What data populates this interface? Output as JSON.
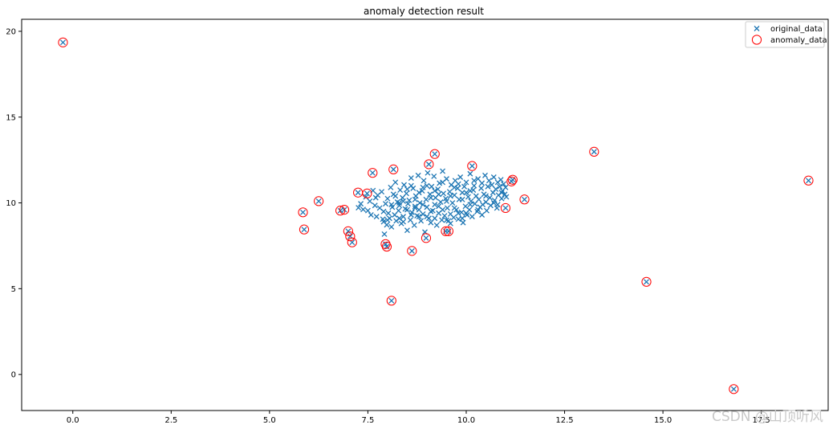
{
  "watermark": "CSDN @山顶听风",
  "colors": {
    "original": "#1f77b4",
    "anomaly": "#ff0000",
    "axis": "#000000",
    "legend_border": "#cccccc",
    "watermark": "#c9c9c9"
  },
  "chart_data": {
    "type": "scatter",
    "title": "anomaly detection result",
    "xlabel": "",
    "ylabel": "",
    "xlim": [
      -1.3,
      19.2
    ],
    "ylim": [
      -2.1,
      20.7
    ],
    "xticks": [
      0.0,
      2.5,
      5.0,
      7.5,
      10.0,
      12.5,
      15.0,
      17.5
    ],
    "xtick_labels": [
      "0.0",
      "2.5",
      "5.0",
      "7.5",
      "10.0",
      "12.5",
      "15.0",
      "17.5"
    ],
    "yticks": [
      0,
      5,
      10,
      15,
      20
    ],
    "ytick_labels": [
      "0",
      "5",
      "10",
      "15",
      "20"
    ],
    "grid": false,
    "legend_position": "top-right",
    "legend": [
      "original_data",
      "anomaly_data"
    ],
    "series": [
      {
        "name": "original_data",
        "marker": "x",
        "color": "#1f77b4",
        "points": [
          [
            7.26,
            9.72
          ],
          [
            7.32,
            9.95
          ],
          [
            7.38,
            9.62
          ],
          [
            7.45,
            10.35
          ],
          [
            7.5,
            9.55
          ],
          [
            7.55,
            10.1
          ],
          [
            7.58,
            9.3
          ],
          [
            7.63,
            10.72
          ],
          [
            7.68,
            9.85
          ],
          [
            7.72,
            9.2
          ],
          [
            7.75,
            10.45
          ],
          [
            7.8,
            9.7
          ],
          [
            7.85,
            10.65
          ],
          [
            7.88,
            9.05
          ],
          [
            7.9,
            8.9
          ],
          [
            7.92,
            8.18
          ],
          [
            7.95,
            9.95
          ],
          [
            7.98,
            8.72
          ],
          [
            8.0,
            10.25
          ],
          [
            8.02,
            9.4
          ],
          [
            8.05,
            9.1
          ],
          [
            8.08,
            10.9
          ],
          [
            8.1,
            8.6
          ],
          [
            8.12,
            9.75
          ],
          [
            8.15,
            10.5
          ],
          [
            8.18,
            9.3
          ],
          [
            8.2,
            11.2
          ],
          [
            8.22,
            8.95
          ],
          [
            8.25,
            10.05
          ],
          [
            8.28,
            9.55
          ],
          [
            8.3,
            9.85
          ],
          [
            8.32,
            10.75
          ],
          [
            8.35,
            8.8
          ],
          [
            8.38,
            10.3
          ],
          [
            8.4,
            9.2
          ],
          [
            8.42,
            11.05
          ],
          [
            8.45,
            9.65
          ],
          [
            8.48,
            10.55
          ],
          [
            8.5,
            8.4
          ],
          [
            8.52,
            9.95
          ],
          [
            8.55,
            10.15
          ],
          [
            8.58,
            9.0
          ],
          [
            8.6,
            11.45
          ],
          [
            8.62,
            9.45
          ],
          [
            8.65,
            10.85
          ],
          [
            8.68,
            8.7
          ],
          [
            8.7,
            9.8
          ],
          [
            8.72,
            10.4
          ],
          [
            8.75,
            9.25
          ],
          [
            8.78,
            11.6
          ],
          [
            8.8,
            9.6
          ],
          [
            8.82,
            10.0
          ],
          [
            8.85,
            8.95
          ],
          [
            8.88,
            10.7
          ],
          [
            8.9,
            9.35
          ],
          [
            8.92,
            11.3
          ],
          [
            8.95,
            8.3
          ],
          [
            8.98,
            10.2
          ],
          [
            9.0,
            9.75
          ],
          [
            9.02,
            11.75
          ],
          [
            9.05,
            9.1
          ],
          [
            9.08,
            10.5
          ],
          [
            9.1,
            8.85
          ],
          [
            9.12,
            10.95
          ],
          [
            9.15,
            9.55
          ],
          [
            9.18,
            11.55
          ],
          [
            9.2,
            9.9
          ],
          [
            9.22,
            10.3
          ],
          [
            9.25,
            8.7
          ],
          [
            9.28,
            10.8
          ],
          [
            9.3,
            9.4
          ],
          [
            9.32,
            11.15
          ],
          [
            9.35,
            10.05
          ],
          [
            9.38,
            9.0
          ],
          [
            9.4,
            11.85
          ],
          [
            9.42,
            10.55
          ],
          [
            9.45,
            9.25
          ],
          [
            9.48,
            10.25
          ],
          [
            9.5,
            11.4
          ],
          [
            9.52,
            9.7
          ],
          [
            9.55,
            8.95
          ],
          [
            9.58,
            10.65
          ],
          [
            9.6,
            9.35
          ],
          [
            9.62,
            11.05
          ],
          [
            9.65,
            10.0
          ],
          [
            9.68,
            9.15
          ],
          [
            9.7,
            10.45
          ],
          [
            9.72,
            11.3
          ],
          [
            9.75,
            9.6
          ],
          [
            9.78,
            10.85
          ],
          [
            9.8,
            9.05
          ],
          [
            9.82,
            10.2
          ],
          [
            9.85,
            11.5
          ],
          [
            9.88,
            9.45
          ],
          [
            9.9,
            10.6
          ],
          [
            9.92,
            8.85
          ],
          [
            9.95,
            10.95
          ],
          [
            9.98,
            9.8
          ],
          [
            10.0,
            11.2
          ],
          [
            10.02,
            9.3
          ],
          [
            10.05,
            10.35
          ],
          [
            10.08,
            9.6
          ],
          [
            10.1,
            11.7
          ],
          [
            10.12,
            10.1
          ],
          [
            10.15,
            9.2
          ],
          [
            10.18,
            10.75
          ],
          [
            10.2,
            11.0
          ],
          [
            10.22,
            9.95
          ],
          [
            10.25,
            10.4
          ],
          [
            10.28,
            9.5
          ],
          [
            10.3,
            11.4
          ],
          [
            10.32,
            10.2
          ],
          [
            10.35,
            9.75
          ],
          [
            10.38,
            10.85
          ],
          [
            10.4,
            11.15
          ],
          [
            10.42,
            9.9
          ],
          [
            10.45,
            10.5
          ],
          [
            10.48,
            11.6
          ],
          [
            10.5,
            10.05
          ],
          [
            10.52,
            9.55
          ],
          [
            10.55,
            10.95
          ],
          [
            10.58,
            11.3
          ],
          [
            10.6,
            10.3
          ],
          [
            10.62,
            9.85
          ],
          [
            10.65,
            11.05
          ],
          [
            10.68,
            10.6
          ],
          [
            10.7,
            11.5
          ],
          [
            10.72,
            10.15
          ],
          [
            10.75,
            10.8
          ],
          [
            10.78,
            9.7
          ],
          [
            10.8,
            11.2
          ],
          [
            10.82,
            10.45
          ],
          [
            10.85,
            10.95
          ],
          [
            10.88,
            11.35
          ],
          [
            10.9,
            10.25
          ],
          [
            10.92,
            10.7
          ],
          [
            10.95,
            11.1
          ],
          [
            10.98,
            10.5
          ],
          [
            11.0,
            10.9
          ],
          [
            11.02,
            10.35
          ],
          [
            8.3,
            10.0
          ],
          [
            8.5,
            9.6
          ],
          [
            8.7,
            10.2
          ],
          [
            8.9,
            9.9
          ],
          [
            9.1,
            10.3
          ],
          [
            9.3,
            9.8
          ],
          [
            9.5,
            10.1
          ],
          [
            9.7,
            9.7
          ],
          [
            9.9,
            10.2
          ],
          [
            10.1,
            9.9
          ],
          [
            8.2,
            10.4
          ],
          [
            8.4,
            10.1
          ],
          [
            8.6,
            9.3
          ],
          [
            8.8,
            10.6
          ],
          [
            9.0,
            9.2
          ],
          [
            9.2,
            10.7
          ],
          [
            9.4,
            9.6
          ],
          [
            9.6,
            10.4
          ],
          [
            9.8,
            9.4
          ],
          [
            10.0,
            10.6
          ],
          [
            7.7,
            10.3
          ],
          [
            7.9,
            9.5
          ],
          [
            8.1,
            9.9
          ],
          [
            8.3,
            9.1
          ],
          [
            8.5,
            10.8
          ],
          [
            8.7,
            9.7
          ],
          [
            8.9,
            10.9
          ],
          [
            9.1,
            9.5
          ],
          [
            9.3,
            10.5
          ],
          [
            9.5,
            9.0
          ],
          [
            9.7,
            10.9
          ],
          [
            9.9,
            9.1
          ],
          [
            10.1,
            10.7
          ],
          [
            10.3,
            9.6
          ],
          [
            10.5,
            10.4
          ],
          [
            10.7,
            10.0
          ],
          [
            10.9,
            10.6
          ],
          [
            8.0,
            9.0
          ],
          [
            8.4,
            8.9
          ],
          [
            8.8,
            9.2
          ],
          [
            9.2,
            9.1
          ],
          [
            9.6,
            8.8
          ],
          [
            10.0,
            9.4
          ],
          [
            10.4,
            9.3
          ],
          [
            10.8,
            9.9
          ],
          [
            9.0,
            11.0
          ],
          [
            9.4,
            11.2
          ],
          [
            9.8,
            11.1
          ],
          [
            10.2,
            11.3
          ],
          [
            8.6,
            11.0
          ],
          [
            7.0,
            8.35
          ],
          [
            7.05,
            8.05
          ],
          [
            7.1,
            7.7
          ],
          [
            6.8,
            9.55
          ],
          [
            6.9,
            9.6
          ],
          [
            5.85,
            9.45
          ],
          [
            5.88,
            8.45
          ],
          [
            6.25,
            10.1
          ],
          [
            7.25,
            10.6
          ],
          [
            7.48,
            10.55
          ],
          [
            7.62,
            11.75
          ],
          [
            8.15,
            11.95
          ],
          [
            9.05,
            12.25
          ],
          [
            9.2,
            12.85
          ],
          [
            10.15,
            12.15
          ],
          [
            7.95,
            7.6
          ],
          [
            7.98,
            7.45
          ],
          [
            8.62,
            7.2
          ],
          [
            8.98,
            7.95
          ],
          [
            9.48,
            8.35
          ],
          [
            9.55,
            8.35
          ],
          [
            11.0,
            9.7
          ],
          [
            11.15,
            11.25
          ],
          [
            11.18,
            11.35
          ],
          [
            11.48,
            10.2
          ],
          [
            8.1,
            4.3
          ],
          [
            13.25,
            12.98
          ],
          [
            14.58,
            5.4
          ],
          [
            18.7,
            11.3
          ],
          [
            16.8,
            -0.85
          ],
          [
            -0.25,
            19.35
          ]
        ]
      },
      {
        "name": "anomaly_data",
        "marker": "o",
        "color": "#ff0000",
        "points": [
          [
            -0.25,
            19.35
          ],
          [
            5.85,
            9.45
          ],
          [
            5.88,
            8.45
          ],
          [
            6.25,
            10.1
          ],
          [
            6.8,
            9.55
          ],
          [
            6.9,
            9.6
          ],
          [
            7.0,
            8.35
          ],
          [
            7.05,
            8.05
          ],
          [
            7.1,
            7.7
          ],
          [
            7.25,
            10.6
          ],
          [
            7.48,
            10.55
          ],
          [
            7.62,
            11.75
          ],
          [
            7.95,
            7.6
          ],
          [
            7.98,
            7.45
          ],
          [
            8.1,
            4.3
          ],
          [
            8.15,
            11.95
          ],
          [
            8.62,
            7.2
          ],
          [
            8.98,
            7.95
          ],
          [
            9.05,
            12.25
          ],
          [
            9.2,
            12.85
          ],
          [
            9.48,
            8.35
          ],
          [
            9.55,
            8.35
          ],
          [
            10.15,
            12.15
          ],
          [
            11.0,
            9.7
          ],
          [
            11.15,
            11.25
          ],
          [
            11.18,
            11.35
          ],
          [
            11.48,
            10.2
          ],
          [
            13.25,
            12.98
          ],
          [
            14.58,
            5.4
          ],
          [
            16.8,
            -0.85
          ],
          [
            18.7,
            11.3
          ]
        ]
      }
    ]
  }
}
